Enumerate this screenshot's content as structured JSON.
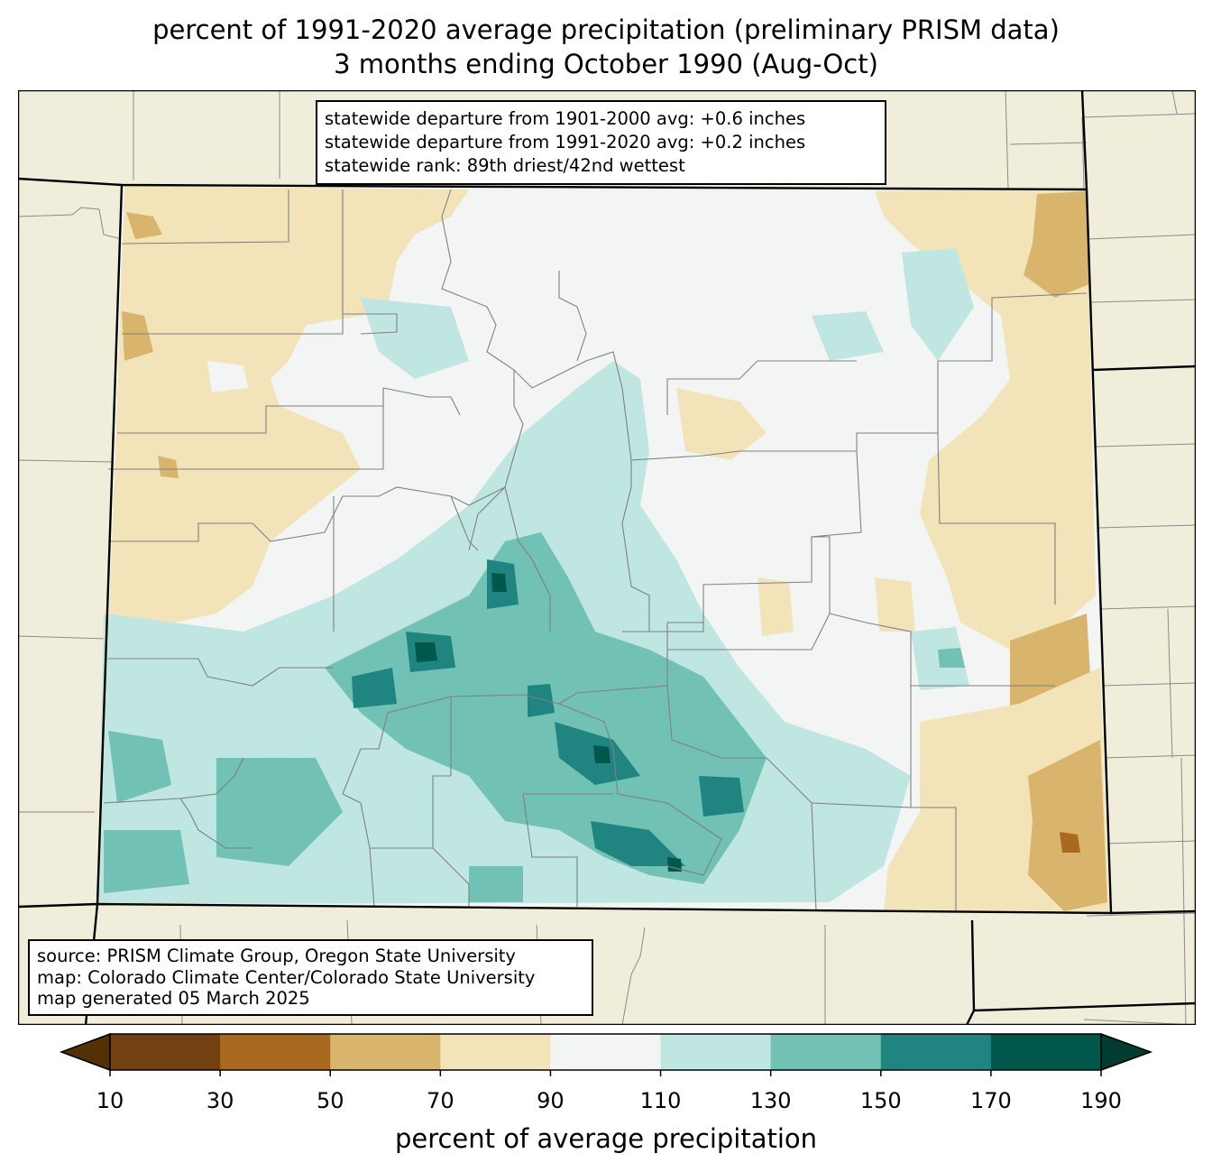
{
  "title": {
    "line1": "percent of 1991-2020 average precipitation (preliminary PRISM data)",
    "line2": "3 months ending October 1990 (Aug-Oct)"
  },
  "stats": {
    "line1": "statewide departure from 1901-2000 avg: +0.6 inches",
    "line2": "statewide departure from 1991-2020 avg: +0.2 inches",
    "line3": "statewide rank: 89th driest/42nd wettest"
  },
  "source": {
    "line1": "source: PRISM Climate Group, Oregon State University",
    "line2": "map: Colorado Climate Center/Colorado State University",
    "line3": "map generated 05 March 2025"
  },
  "colorbar": {
    "label": "percent of average precipitation",
    "ticks": [
      "10",
      "30",
      "50",
      "70",
      "90",
      "110",
      "130",
      "150",
      "170",
      "190"
    ],
    "colors": [
      "#734011",
      "#a9691f",
      "#d9b46c",
      "#f3e3b9",
      "#f3f5f4",
      "#bfe6e0",
      "#71c1b5",
      "#208580",
      "#00574c"
    ],
    "under_color": "#543005",
    "over_color": "#003c30"
  },
  "colors": {
    "background_land": "#f0eedb",
    "border": "#000000",
    "county_lines": "#808080"
  }
}
